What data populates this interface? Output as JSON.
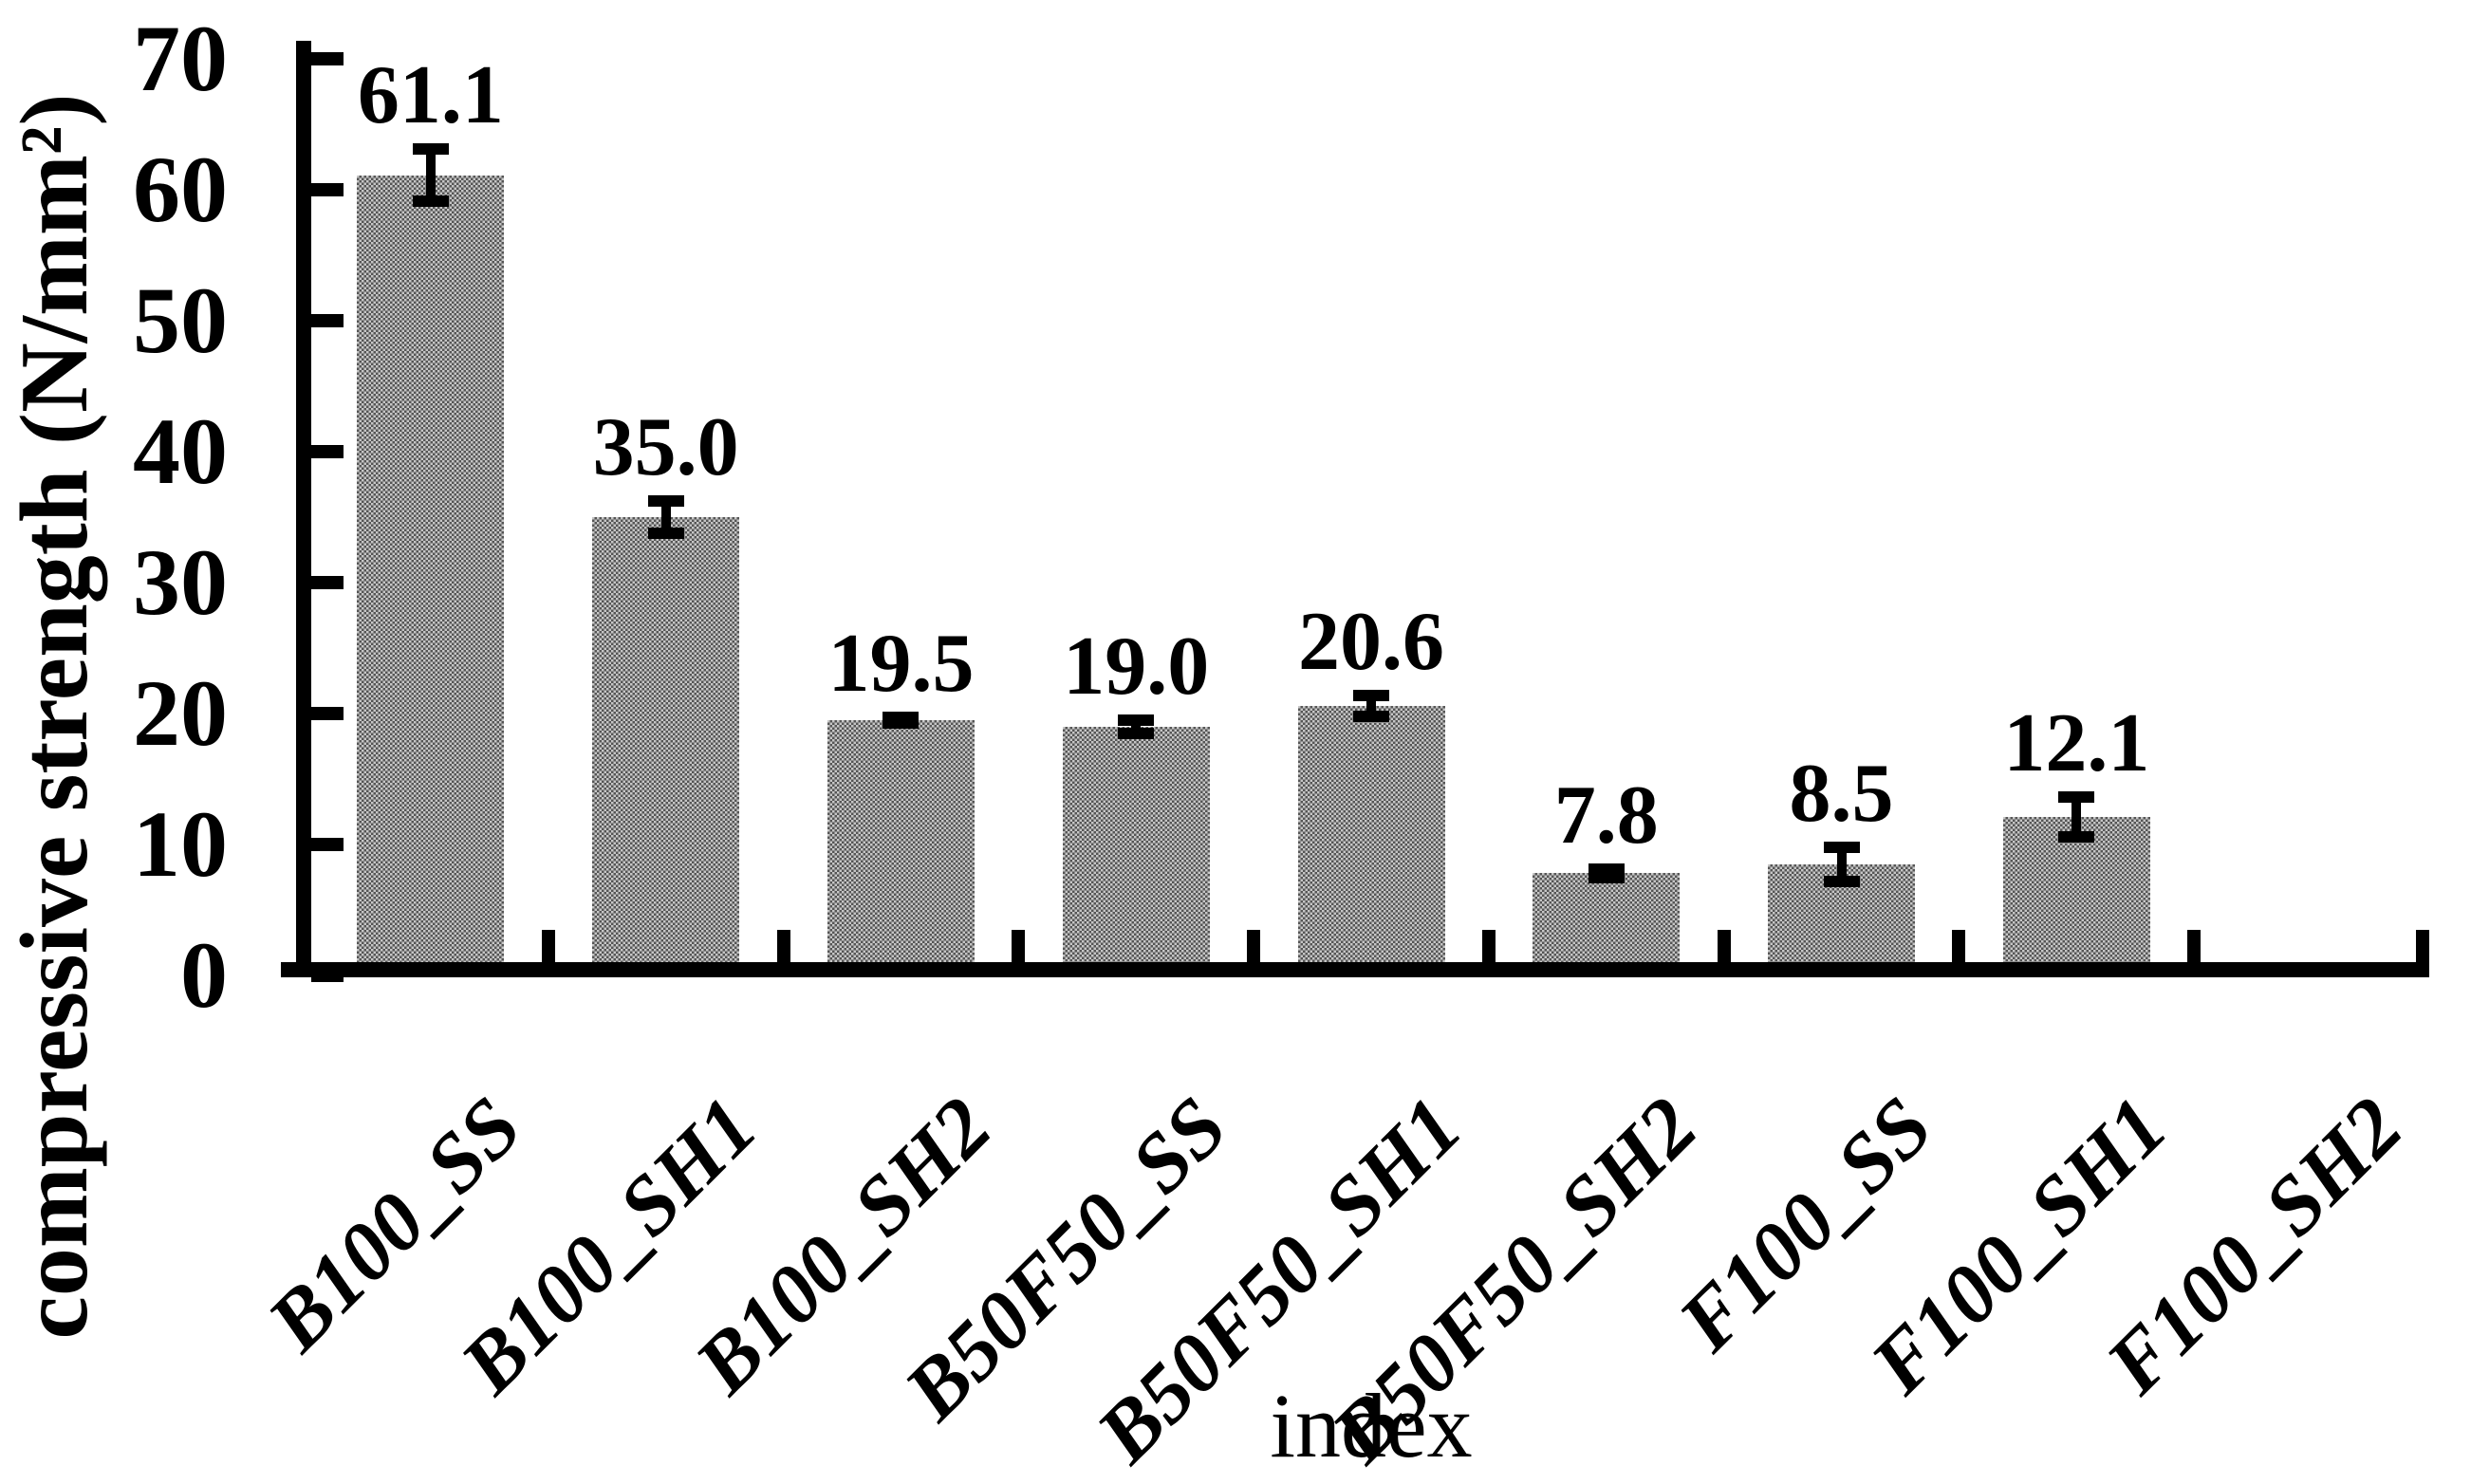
{
  "chart_data": {
    "type": "bar",
    "title": "",
    "xlabel": "index",
    "ylabel": "compressive strength (N/mm²)",
    "categories": [
      "B100_SS",
      "B100_SH1",
      "B100_SH2",
      "B50F50_SS",
      "B50F50_SH1",
      "B50F50_SH2",
      "F100_SS",
      "F100_SH1",
      "F100_SH2"
    ],
    "values": [
      61.1,
      35.0,
      19.5,
      19.0,
      20.6,
      7.8,
      8.5,
      12.1,
      0
    ],
    "value_labels": [
      "61.1",
      "35.0",
      "19.5",
      "19.0",
      "20.6",
      "7.8",
      "8.5",
      "12.1",
      ""
    ],
    "errors": [
      2.0,
      1.2,
      0.2,
      0.5,
      0.8,
      0.3,
      1.3,
      1.5,
      0
    ],
    "yticks": [
      "0",
      "10",
      "20",
      "30",
      "40",
      "50",
      "60",
      "70"
    ],
    "ylim": [
      0,
      70
    ],
    "grid": false,
    "legend": false,
    "bar_color": "#969696",
    "bar_pattern": "halftone-checker",
    "axis_color": "#000000",
    "error_bar_color": "#000000",
    "category_label_rotation_deg": 45
  }
}
